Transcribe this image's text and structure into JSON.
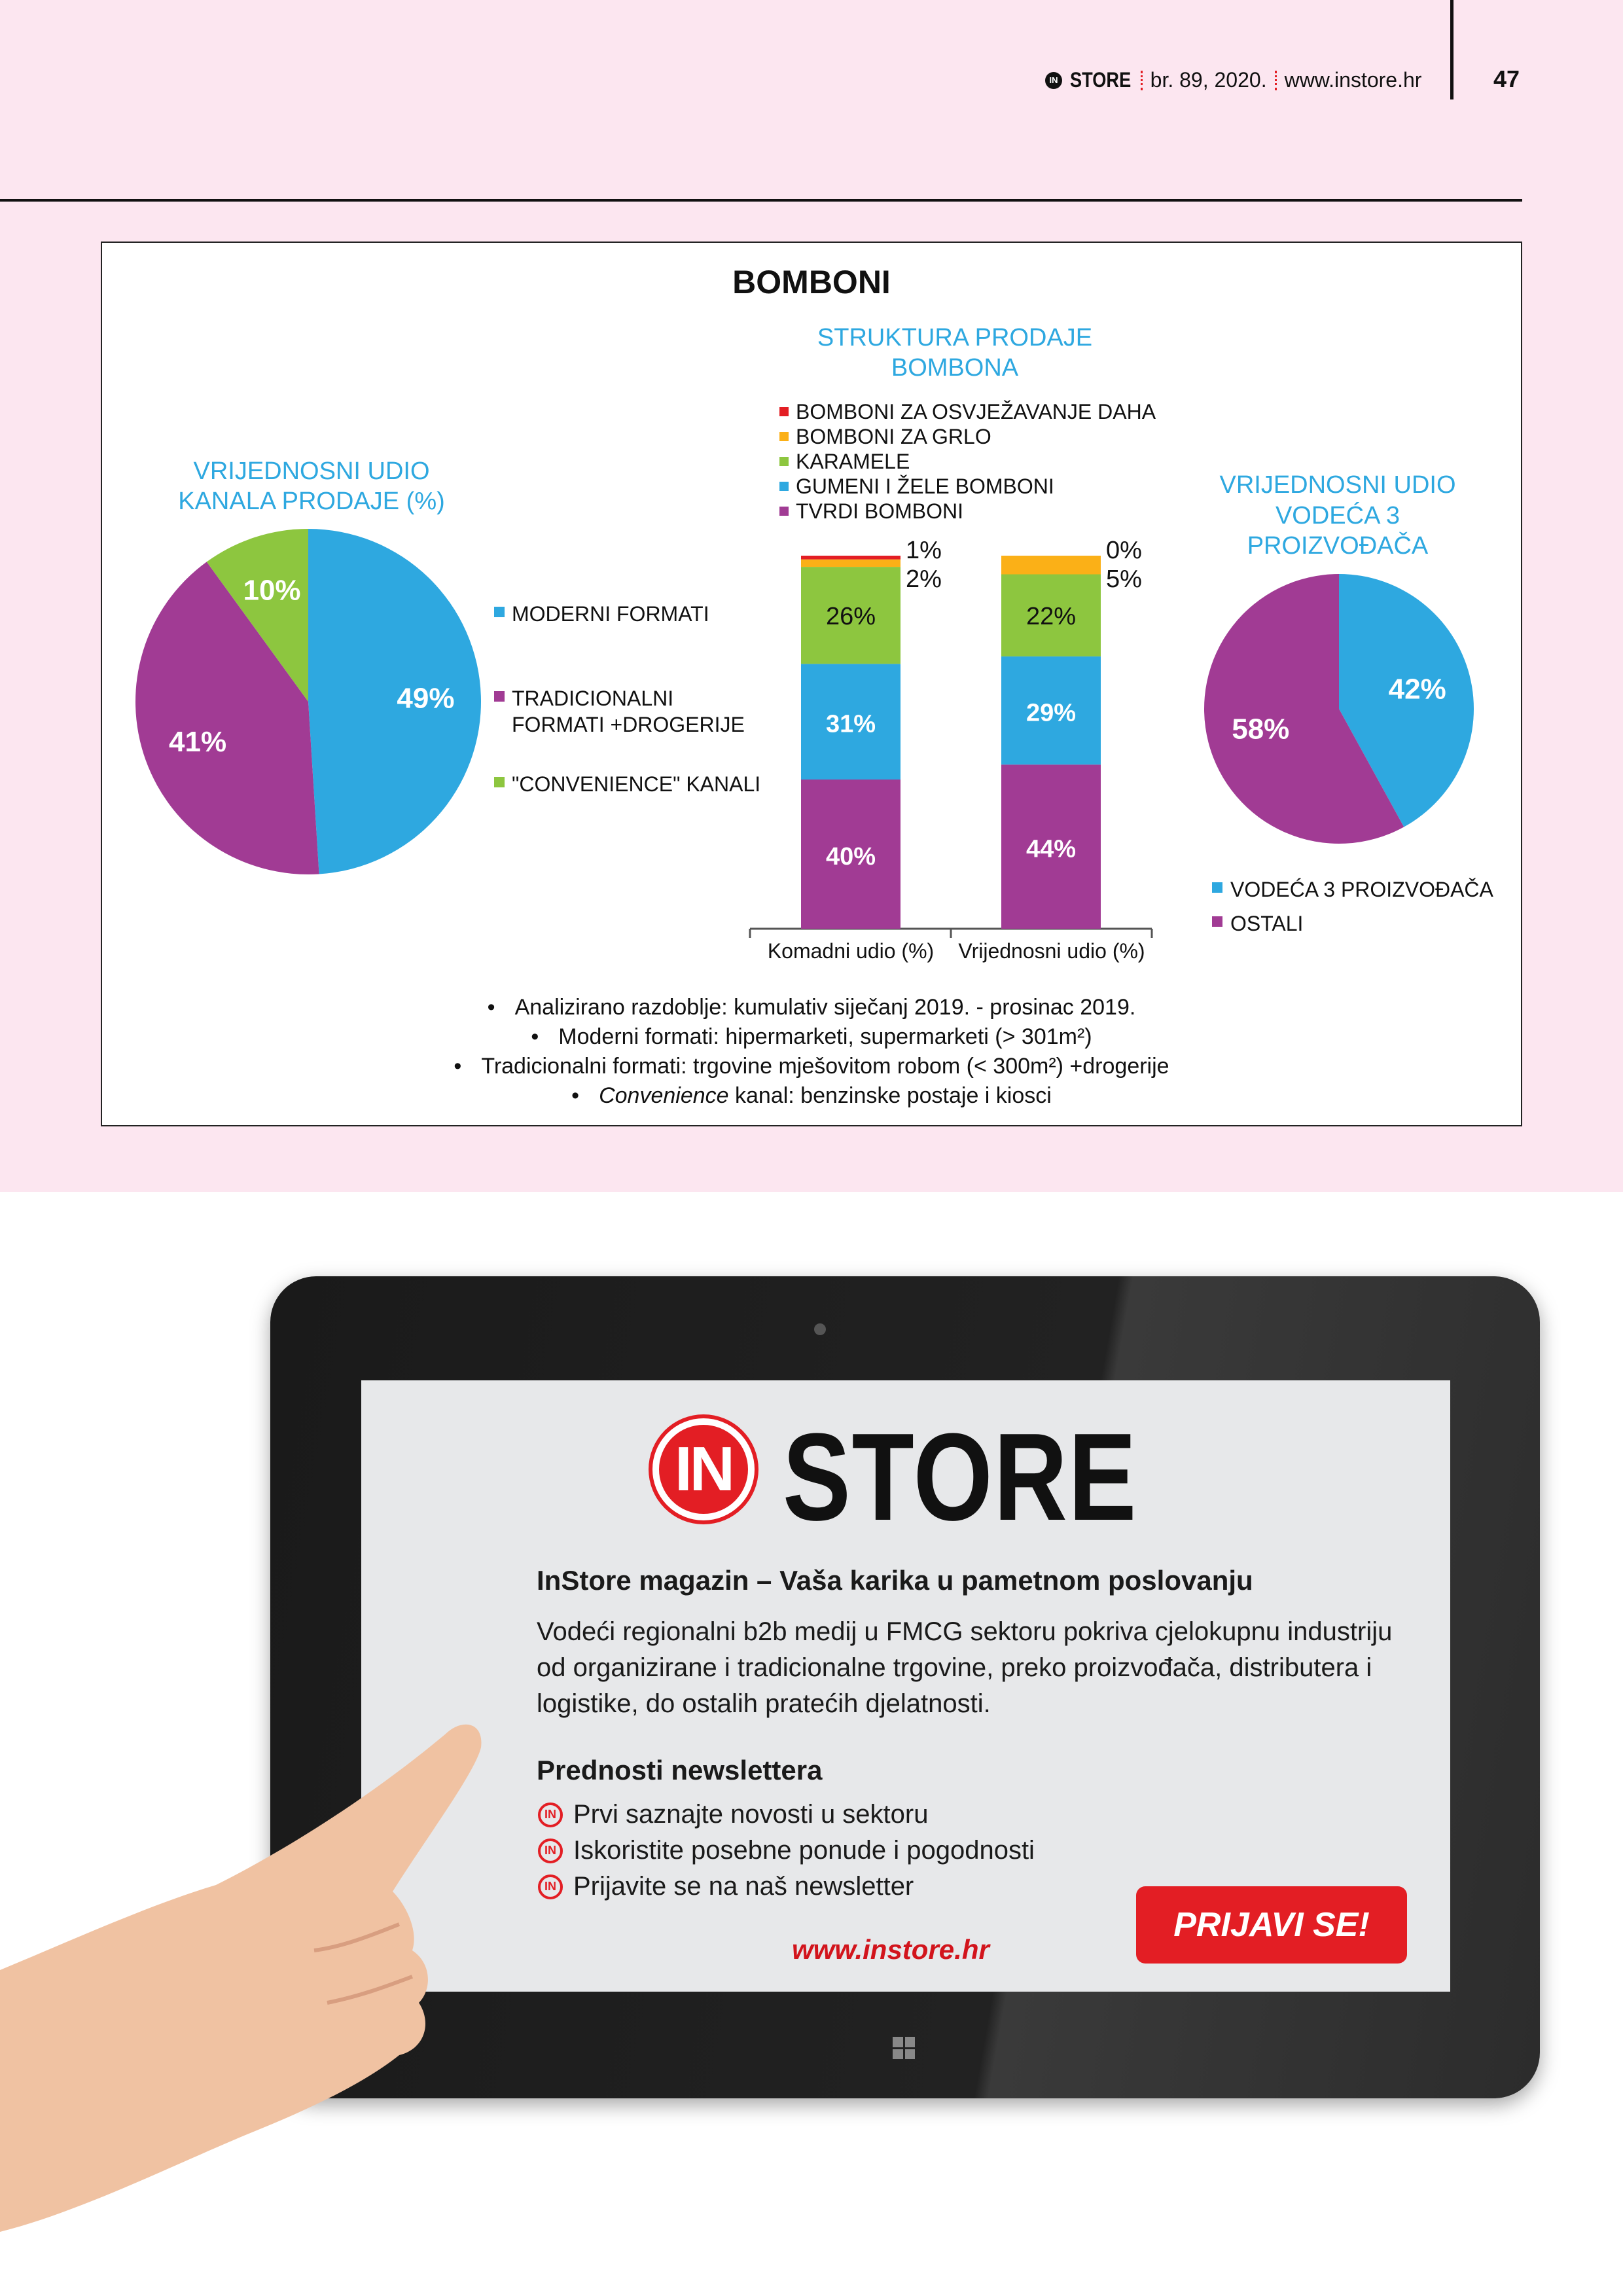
{
  "header": {
    "brand_in": "IN",
    "brand_store": "STORE",
    "issue": "br. 89, 2020.",
    "website": "www.instore.hr",
    "page_number": "47"
  },
  "infographic": {
    "title": "BOMBONI",
    "left_pie": {
      "title_line1": "VRIJEDNOSNI UDIO",
      "title_line2": "KANALA PRODAJE (%)",
      "slices": [
        {
          "label": "MODERNI FORMATI",
          "value": 49,
          "text": "49%",
          "color": "#2ea8e0"
        },
        {
          "label_line1": "TRADICIONALNI",
          "label_line2": "FORMATI +DROGERIJE",
          "value": 41,
          "text": "41%",
          "color": "#a13b94"
        },
        {
          "label": "\"CONVENIENCE\" KANALI",
          "value": 10,
          "text": "10%",
          "color": "#8dc63f"
        }
      ]
    },
    "bar_chart": {
      "title_line1": "STRUKTURA PRODAJE",
      "title_line2": "BOMBONA",
      "categories": [
        "Komadni udio (%)",
        "Vrijednosni udio (%)"
      ],
      "series": [
        {
          "name": "TVRDI BOMBONI",
          "color": "#a13b94",
          "values": [
            40,
            44
          ]
        },
        {
          "name": "GUMENI I ŽELE BOMBONI",
          "color": "#2ea8e0",
          "values": [
            31,
            29
          ]
        },
        {
          "name": "KARAMELE",
          "color": "#8dc63f",
          "values": [
            26,
            22
          ]
        },
        {
          "name": "BOMBONI ZA GRLO",
          "color": "#fbb017",
          "values": [
            2,
            5
          ]
        },
        {
          "name": "BOMBONI ZA OSVJEŽAVANJE DAHA",
          "color": "#e31e24",
          "values": [
            1,
            0
          ]
        }
      ],
      "legend_order": [
        "BOMBONI ZA OSVJEŽAVANJE DAHA",
        "BOMBONI ZA GRLO",
        "KARAMELE",
        "GUMENI I ŽELE BOMBONI",
        "TVRDI BOMBONI"
      ]
    },
    "right_pie": {
      "title_line1": "VRIJEDNOSNI UDIO",
      "title_line2": "VODEĆA 3",
      "title_line3": "PROIZVOĐAČA",
      "slices": [
        {
          "label": "VODEĆA 3 PROIZVOĐAČA",
          "value": 42,
          "text": "42%",
          "color": "#2ea8e0"
        },
        {
          "label": "OSTALI",
          "value": 58,
          "text": "58%",
          "color": "#a13b94"
        }
      ]
    },
    "notes": [
      "Analizirano razdoblje: kumulativ siječanj 2019. - prosinac 2019.",
      "Moderni formati: hipermarketi, supermarketi (> 301m²)",
      "Tradicionalni formati: trgovine mješovitom robom (< 300m²) +drogerije"
    ],
    "note4_italic": "Convenience",
    "note4_rest": " kanal: benzinske postaje i kiosci",
    "bullet": "•"
  },
  "ad": {
    "logo_in": "IN",
    "logo_store": "STORE",
    "heading": "InStore magazin – Vaša karika u pametnom poslovanju",
    "paragraph": [
      "Vodeći regionalni b2b medij u FMCG sektoru pokriva cjelokupnu industriju",
      "od organizirane i tradicionalne trgovine, preko proizvođača, distributera i",
      "logistike, do ostalih pratećih djelatnosti."
    ],
    "benefits_title": "Prednosti newslettera",
    "benefit_icon": "IN",
    "benefits": [
      "Prvi saznajte novosti u sektoru",
      "Iskoristite posebne ponude i pogodnosti",
      "Prijavite se na naš newsletter"
    ],
    "url": "www.instore.hr",
    "button": "PRIJAVI SE!"
  }
}
